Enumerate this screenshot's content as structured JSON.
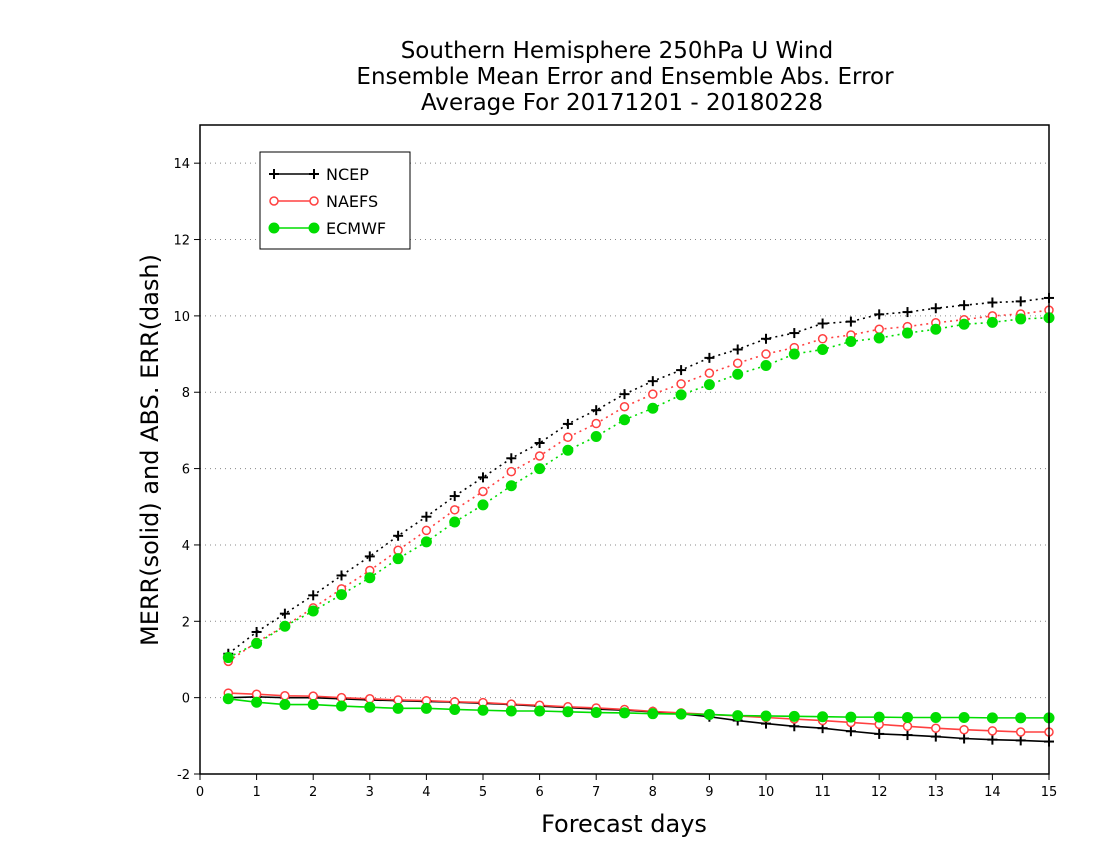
{
  "chart_data": {
    "type": "line",
    "title": [
      "Southern Hemisphere 250hPa U Wind",
      "Ensemble Mean Error and Ensemble Abs. Error",
      "Average For 20171201 - 20180228"
    ],
    "xlabel": "Forecast days",
    "ylabel": "MERR(solid) and ABS. ERR(dash)",
    "xlim": [
      0,
      15
    ],
    "ylim": [
      -2,
      15
    ],
    "xticks": [
      0,
      1,
      2,
      3,
      4,
      5,
      6,
      7,
      8,
      9,
      10,
      11,
      12,
      13,
      14,
      15
    ],
    "yticks": [
      -2,
      0,
      2,
      4,
      6,
      8,
      10,
      12,
      14
    ],
    "grid": "horizontal dotted",
    "legend_position": "top-left",
    "x": [
      0.5,
      1,
      1.5,
      2,
      2.5,
      3,
      3.5,
      4,
      4.5,
      5,
      5.5,
      6,
      6.5,
      7,
      7.5,
      8,
      8.5,
      9,
      9.5,
      10,
      10.5,
      11,
      11.5,
      12,
      12.5,
      13,
      13.5,
      14,
      14.5,
      15
    ],
    "series": [
      {
        "name": "NCEP",
        "color": "#000000",
        "marker": "plus",
        "abs_error": [
          1.15,
          1.72,
          2.2,
          2.68,
          3.2,
          3.7,
          4.24,
          4.74,
          5.28,
          5.77,
          6.27,
          6.67,
          7.17,
          7.53,
          7.95,
          8.29,
          8.58,
          8.9,
          9.12,
          9.4,
          9.55,
          9.8,
          9.85,
          10.04,
          10.1,
          10.2,
          10.28,
          10.35,
          10.38,
          10.47
        ],
        "mean_error": [
          0.0,
          0.02,
          0.0,
          0.0,
          -0.03,
          -0.06,
          -0.08,
          -0.1,
          -0.12,
          -0.15,
          -0.18,
          -0.22,
          -0.26,
          -0.3,
          -0.33,
          -0.37,
          -0.42,
          -0.5,
          -0.6,
          -0.68,
          -0.75,
          -0.8,
          -0.88,
          -0.95,
          -0.98,
          -1.02,
          -1.07,
          -1.1,
          -1.12,
          -1.15
        ]
      },
      {
        "name": "NAEFS",
        "color": "#ff4040",
        "marker": "open-circle",
        "abs_error": [
          0.95,
          1.45,
          1.88,
          2.35,
          2.85,
          3.33,
          3.86,
          4.38,
          4.92,
          5.4,
          5.92,
          6.33,
          6.82,
          7.18,
          7.62,
          7.95,
          8.22,
          8.5,
          8.76,
          9.0,
          9.17,
          9.4,
          9.5,
          9.65,
          9.72,
          9.82,
          9.9,
          10.0,
          10.05,
          10.15
        ],
        "mean_error": [
          0.12,
          0.09,
          0.05,
          0.04,
          0.0,
          -0.03,
          -0.06,
          -0.08,
          -0.11,
          -0.13,
          -0.17,
          -0.2,
          -0.24,
          -0.27,
          -0.31,
          -0.36,
          -0.4,
          -0.44,
          -0.48,
          -0.52,
          -0.56,
          -0.6,
          -0.65,
          -0.7,
          -0.75,
          -0.8,
          -0.84,
          -0.87,
          -0.9,
          -0.9
        ]
      },
      {
        "name": "ECMWF",
        "color": "#00dd00",
        "marker": "filled-circle",
        "abs_error": [
          1.05,
          1.42,
          1.87,
          2.27,
          2.7,
          3.14,
          3.64,
          4.08,
          4.6,
          5.05,
          5.55,
          6.0,
          6.48,
          6.84,
          7.28,
          7.58,
          7.93,
          8.2,
          8.47,
          8.7,
          9.0,
          9.12,
          9.33,
          9.42,
          9.55,
          9.65,
          9.78,
          9.83,
          9.92,
          9.95
        ],
        "mean_error": [
          -0.03,
          -0.12,
          -0.18,
          -0.18,
          -0.22,
          -0.25,
          -0.28,
          -0.28,
          -0.31,
          -0.33,
          -0.35,
          -0.35,
          -0.37,
          -0.39,
          -0.4,
          -0.42,
          -0.43,
          -0.44,
          -0.47,
          -0.48,
          -0.49,
          -0.5,
          -0.51,
          -0.51,
          -0.52,
          -0.52,
          -0.52,
          -0.53,
          -0.53,
          -0.53
        ]
      }
    ]
  }
}
